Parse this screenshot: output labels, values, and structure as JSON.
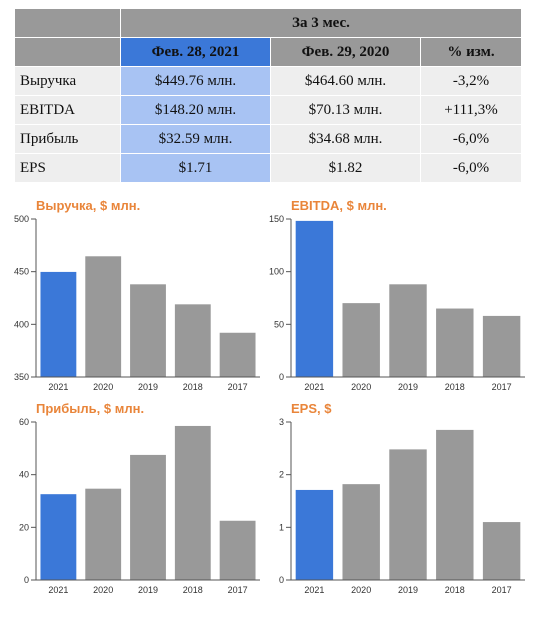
{
  "table": {
    "period_header": "За 3 мес.",
    "col_current": "Фев. 28, 2021",
    "col_previous": "Фев. 29, 2020",
    "col_change": "% изм.",
    "rows": [
      {
        "label": "Выручка",
        "current": "$449.76 млн.",
        "previous": "$464.60 млн.",
        "change": "-3,2%"
      },
      {
        "label": "EBITDA",
        "current": "$148.20 млн.",
        "previous": "$70.13 млн.",
        "change": "+111,3%"
      },
      {
        "label": "Прибыль",
        "current": "$32.59 млн.",
        "previous": "$34.68 млн.",
        "change": "-6,0%"
      },
      {
        "label": "EPS",
        "current": "$1.71",
        "previous": "$1.82",
        "change": "-6,0%"
      }
    ]
  },
  "colors": {
    "highlight_bar": "#3b78d8",
    "other_bar": "#999999",
    "title": "#e9853a",
    "header_dark": "#999999",
    "header_highlight": "#3b78d8",
    "cell_highlight": "#a8c3f3",
    "cell_plain": "#eeeeee"
  },
  "chart_data": [
    {
      "type": "bar",
      "title": "Выручка, $ млн.",
      "categories": [
        "2021",
        "2020",
        "2019",
        "2018",
        "2017"
      ],
      "values": [
        449.76,
        464.6,
        438,
        419,
        392
      ],
      "ylim": [
        350,
        500
      ],
      "yticks": [
        "350",
        "400",
        "450",
        "500"
      ],
      "highlight_index": 0
    },
    {
      "type": "bar",
      "title": "EBITDA, $ млн.",
      "categories": [
        "2021",
        "2020",
        "2019",
        "2018",
        "2017"
      ],
      "values": [
        148.2,
        70.13,
        88,
        65,
        58
      ],
      "ylim": [
        0,
        150
      ],
      "yticks": [
        "0",
        "50",
        "100",
        "150"
      ],
      "highlight_index": 0
    },
    {
      "type": "bar",
      "title": "Прибыль, $ млн.",
      "categories": [
        "2021",
        "2020",
        "2019",
        "2018",
        "2017"
      ],
      "values": [
        32.59,
        34.68,
        47.5,
        58.5,
        22.5
      ],
      "ylim": [
        0,
        60
      ],
      "yticks": [
        "0",
        "20",
        "40",
        "60"
      ],
      "highlight_index": 0
    },
    {
      "type": "bar",
      "title": "EPS, $",
      "categories": [
        "2021",
        "2020",
        "2019",
        "2018",
        "2017"
      ],
      "values": [
        1.71,
        1.82,
        2.48,
        2.85,
        1.1
      ],
      "ylim": [
        0,
        3
      ],
      "yticks": [
        "0",
        "1",
        "2",
        "3"
      ],
      "highlight_index": 0
    }
  ]
}
